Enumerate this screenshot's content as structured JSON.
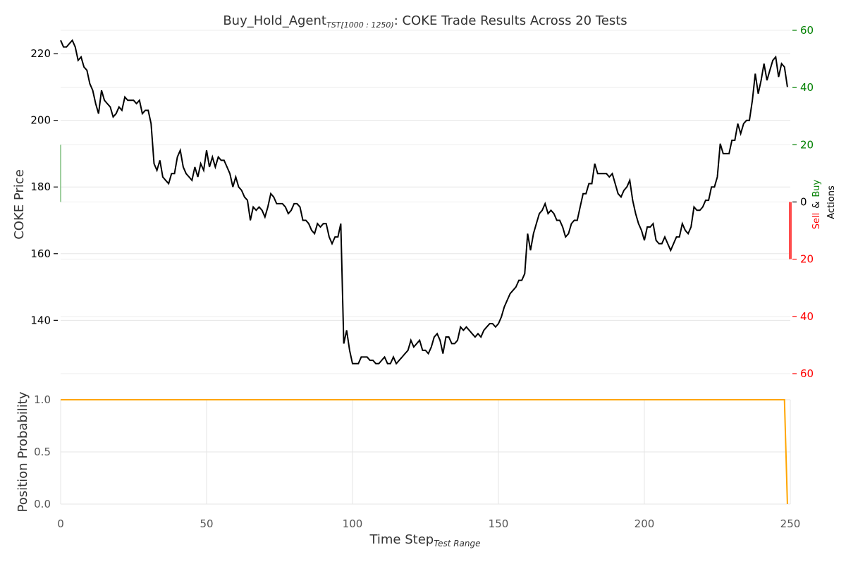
{
  "title": {
    "prefix": "Buy_Hold_Agent",
    "subscript": "TST[1000 : 1250)",
    "suffix": ": COKE Trade Results Across 20 Tests"
  },
  "xlabel": {
    "main": "Time Step",
    "subscript": "Test Range"
  },
  "colors": {
    "price": "#000000",
    "position": "#ffa500",
    "buy": "#008000",
    "sell": "#ff0000",
    "buy_bar": "#7fbf7f",
    "sell_bar": "#ff4d4d",
    "grid": "#e5e5e5",
    "tick": "#555555"
  },
  "chart_data": [
    {
      "type": "line",
      "ylabel": "COKE Price",
      "xlim": [
        0,
        250
      ],
      "ylim": [
        124,
        227
      ],
      "yticks": [
        140,
        160,
        180,
        200,
        220
      ],
      "grid": true,
      "series": [
        {
          "name": "",
          "keypoints": [
            [
              0,
              224
            ],
            [
              1,
              222
            ],
            [
              2,
              222
            ],
            [
              3,
              223
            ],
            [
              4,
              224
            ],
            [
              5,
              222
            ],
            [
              6,
              218
            ],
            [
              7,
              219
            ],
            [
              8,
              216
            ],
            [
              9,
              215
            ],
            [
              10,
              211
            ],
            [
              11,
              209
            ],
            [
              12,
              205
            ],
            [
              13,
              202
            ],
            [
              14,
              209
            ],
            [
              15,
              206
            ],
            [
              16,
              205
            ],
            [
              17,
              204
            ],
            [
              18,
              201
            ],
            [
              19,
              202
            ],
            [
              20,
              204
            ],
            [
              21,
              203
            ],
            [
              22,
              207
            ],
            [
              23,
              206
            ],
            [
              24,
              206
            ],
            [
              25,
              206
            ],
            [
              26,
              205
            ],
            [
              27,
              206
            ],
            [
              28,
              202
            ],
            [
              29,
              203
            ],
            [
              30,
              203
            ],
            [
              31,
              199
            ],
            [
              32,
              187
            ],
            [
              33,
              185
            ],
            [
              34,
              188
            ],
            [
              35,
              183
            ],
            [
              36,
              182
            ],
            [
              37,
              181
            ],
            [
              38,
              184
            ],
            [
              39,
              184
            ],
            [
              40,
              189
            ],
            [
              41,
              191
            ],
            [
              42,
              186
            ],
            [
              43,
              184
            ],
            [
              44,
              183
            ],
            [
              45,
              182
            ],
            [
              46,
              186
            ],
            [
              47,
              183
            ],
            [
              48,
              187
            ],
            [
              49,
              185
            ],
            [
              50,
              191
            ],
            [
              51,
              186
            ],
            [
              52,
              189
            ],
            [
              53,
              186
            ],
            [
              54,
              189
            ],
            [
              55,
              188
            ],
            [
              56,
              188
            ],
            [
              57,
              186
            ],
            [
              58,
              184
            ],
            [
              59,
              180
            ],
            [
              60,
              183
            ],
            [
              61,
              180
            ],
            [
              62,
              179
            ],
            [
              63,
              177
            ],
            [
              64,
              176
            ],
            [
              65,
              170
            ],
            [
              66,
              174
            ],
            [
              67,
              173
            ],
            [
              68,
              174
            ],
            [
              69,
              173
            ],
            [
              70,
              171
            ],
            [
              71,
              174
            ],
            [
              72,
              178
            ],
            [
              73,
              177
            ],
            [
              74,
              175
            ],
            [
              75,
              175
            ],
            [
              76,
              175
            ],
            [
              77,
              174
            ],
            [
              78,
              172
            ],
            [
              79,
              173
            ],
            [
              80,
              175
            ],
            [
              81,
              175
            ],
            [
              82,
              174
            ],
            [
              83,
              170
            ],
            [
              84,
              170
            ],
            [
              85,
              169
            ],
            [
              86,
              167
            ],
            [
              87,
              166
            ],
            [
              88,
              169
            ],
            [
              89,
              168
            ],
            [
              90,
              169
            ],
            [
              91,
              169
            ],
            [
              92,
              165
            ],
            [
              93,
              163
            ],
            [
              94,
              165
            ],
            [
              95,
              165
            ],
            [
              96,
              169
            ],
            [
              97,
              133
            ],
            [
              98,
              137
            ],
            [
              99,
              131
            ],
            [
              100,
              127
            ],
            [
              101,
              127
            ],
            [
              102,
              127
            ],
            [
              103,
              129
            ],
            [
              104,
              129
            ],
            [
              105,
              129
            ],
            [
              106,
              128
            ],
            [
              107,
              128
            ],
            [
              108,
              127
            ],
            [
              109,
              127
            ],
            [
              110,
              128
            ],
            [
              111,
              129
            ],
            [
              112,
              127
            ],
            [
              113,
              127
            ],
            [
              114,
              129
            ],
            [
              115,
              127
            ],
            [
              116,
              128
            ],
            [
              117,
              129
            ],
            [
              118,
              130
            ],
            [
              119,
              131
            ],
            [
              120,
              134
            ],
            [
              121,
              132
            ],
            [
              122,
              133
            ],
            [
              123,
              134
            ],
            [
              124,
              131
            ],
            [
              125,
              131
            ],
            [
              126,
              130
            ],
            [
              127,
              132
            ],
            [
              128,
              135
            ],
            [
              129,
              136
            ],
            [
              130,
              134
            ],
            [
              131,
              130
            ],
            [
              132,
              135
            ],
            [
              133,
              135
            ],
            [
              134,
              133
            ],
            [
              135,
              133
            ],
            [
              136,
              134
            ],
            [
              137,
              138
            ],
            [
              138,
              137
            ],
            [
              139,
              138
            ],
            [
              140,
              137
            ],
            [
              141,
              136
            ],
            [
              142,
              135
            ],
            [
              143,
              136
            ],
            [
              144,
              135
            ],
            [
              145,
              137
            ],
            [
              146,
              138
            ],
            [
              147,
              139
            ],
            [
              148,
              139
            ],
            [
              149,
              138
            ],
            [
              150,
              139
            ],
            [
              151,
              141
            ],
            [
              152,
              144
            ],
            [
              153,
              146
            ],
            [
              154,
              148
            ],
            [
              155,
              149
            ],
            [
              156,
              150
            ],
            [
              157,
              152
            ],
            [
              158,
              152
            ],
            [
              159,
              154
            ],
            [
              160,
              166
            ],
            [
              161,
              161
            ],
            [
              162,
              166
            ],
            [
              163,
              169
            ],
            [
              164,
              172
            ],
            [
              165,
              173
            ],
            [
              166,
              175
            ],
            [
              167,
              172
            ],
            [
              168,
              173
            ],
            [
              169,
              172
            ],
            [
              170,
              170
            ],
            [
              171,
              170
            ],
            [
              172,
              168
            ],
            [
              173,
              165
            ],
            [
              174,
              166
            ],
            [
              175,
              169
            ],
            [
              176,
              170
            ],
            [
              177,
              170
            ],
            [
              178,
              174
            ],
            [
              179,
              178
            ],
            [
              180,
              178
            ],
            [
              181,
              181
            ],
            [
              182,
              181
            ],
            [
              183,
              187
            ],
            [
              184,
              184
            ],
            [
              185,
              184
            ],
            [
              186,
              184
            ],
            [
              187,
              184
            ],
            [
              188,
              183
            ],
            [
              189,
              184
            ],
            [
              190,
              181
            ],
            [
              191,
              178
            ],
            [
              192,
              177
            ],
            [
              193,
              179
            ],
            [
              194,
              180
            ],
            [
              195,
              182
            ],
            [
              196,
              176
            ],
            [
              197,
              172
            ],
            [
              198,
              169
            ],
            [
              199,
              167
            ],
            [
              200,
              164
            ],
            [
              201,
              168
            ],
            [
              202,
              168
            ],
            [
              203,
              169
            ],
            [
              204,
              164
            ],
            [
              205,
              163
            ],
            [
              206,
              163
            ],
            [
              207,
              165
            ],
            [
              208,
              163
            ],
            [
              209,
              161
            ],
            [
              210,
              163
            ],
            [
              211,
              165
            ],
            [
              212,
              165
            ],
            [
              213,
              169
            ],
            [
              214,
              167
            ],
            [
              215,
              166
            ],
            [
              216,
              168
            ],
            [
              217,
              174
            ],
            [
              218,
              173
            ],
            [
              219,
              173
            ],
            [
              220,
              174
            ],
            [
              221,
              176
            ],
            [
              222,
              176
            ],
            [
              223,
              180
            ],
            [
              224,
              180
            ],
            [
              225,
              183
            ],
            [
              226,
              193
            ],
            [
              227,
              190
            ],
            [
              228,
              190
            ],
            [
              229,
              190
            ],
            [
              230,
              194
            ],
            [
              231,
              194
            ],
            [
              232,
              199
            ],
            [
              233,
              196
            ],
            [
              234,
              199
            ],
            [
              235,
              200
            ],
            [
              236,
              200
            ],
            [
              237,
              206
            ],
            [
              238,
              214
            ],
            [
              239,
              208
            ],
            [
              240,
              212
            ],
            [
              241,
              217
            ],
            [
              242,
              212
            ],
            [
              243,
              215
            ],
            [
              244,
              218
            ],
            [
              245,
              219
            ],
            [
              246,
              213
            ],
            [
              247,
              217
            ],
            [
              248,
              216
            ],
            [
              249,
              210
            ]
          ]
        }
      ]
    },
    {
      "type": "bar",
      "ylabel": "Sell  &  Buy  Actions",
      "ylabel_parts": {
        "sell": "Sell",
        "amp": "&",
        "buy": "Buy",
        "actions": "Actions"
      },
      "ylim": [
        -60,
        60
      ],
      "yticks": [
        60,
        40,
        20,
        0,
        20,
        40,
        60
      ],
      "series": [
        {
          "name": "Buy",
          "x": 0,
          "value": 20
        },
        {
          "name": "Sell",
          "x": 250,
          "value": -20
        }
      ]
    },
    {
      "type": "line",
      "ylabel": "Position Probability",
      "xlabel": "Time Step",
      "xlim": [
        0,
        250
      ],
      "ylim": [
        0,
        1
      ],
      "xticks": [
        0,
        50,
        100,
        150,
        200,
        250
      ],
      "yticks": [
        0.0,
        0.5,
        1.0
      ],
      "ytick_labels": [
        "0.0",
        "0.5",
        "1.0"
      ],
      "grid": true,
      "series": [
        {
          "name": "",
          "x": [
            0,
            248,
            249
          ],
          "y": [
            1.0,
            1.0,
            0.0
          ]
        }
      ]
    }
  ]
}
